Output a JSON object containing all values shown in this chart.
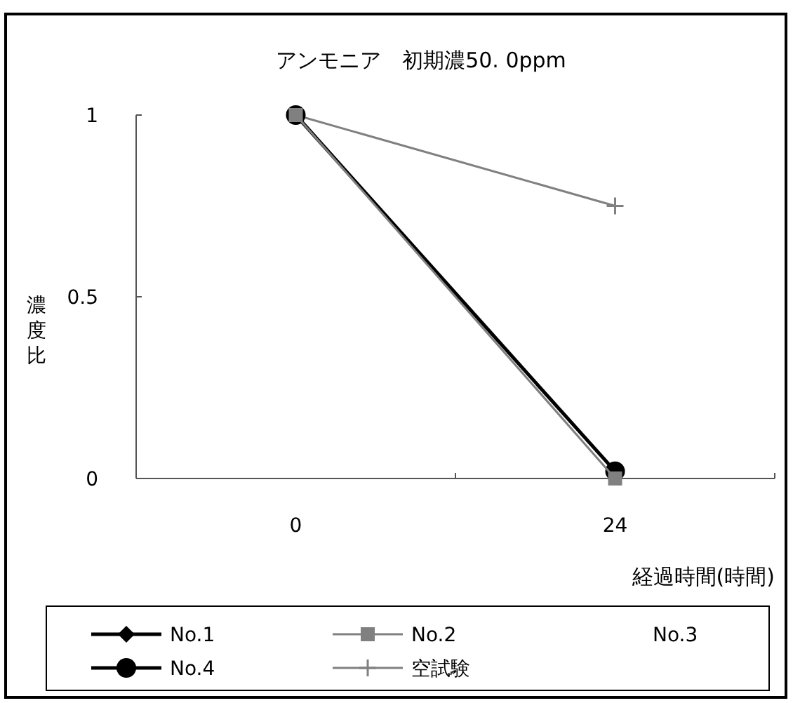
{
  "chart_data": {
    "type": "line",
    "title": "アンモニア　初期濃50. 0ppm",
    "xlabel": "経過時間(時間)",
    "ylabel": "濃度比",
    "categories": [
      "0",
      "24"
    ],
    "ylim": [
      0,
      1
    ],
    "yticks": [
      0,
      0.5,
      1
    ],
    "grid": false,
    "legend": "bottom",
    "series": [
      {
        "name": "No.1",
        "color": "#000000",
        "marker": "diamond",
        "values": [
          null,
          null
        ]
      },
      {
        "name": "No.2",
        "color": "#808080",
        "marker": "square",
        "values": [
          1,
          0
        ]
      },
      {
        "name": "No.3",
        "values": [
          null,
          null
        ]
      },
      {
        "name": "No.4",
        "color": "#000000",
        "marker": "circle",
        "values": [
          1,
          0.02
        ]
      },
      {
        "name": "空試験",
        "color": "#808080",
        "marker": "cross",
        "values": [
          1,
          0.75
        ]
      }
    ]
  }
}
